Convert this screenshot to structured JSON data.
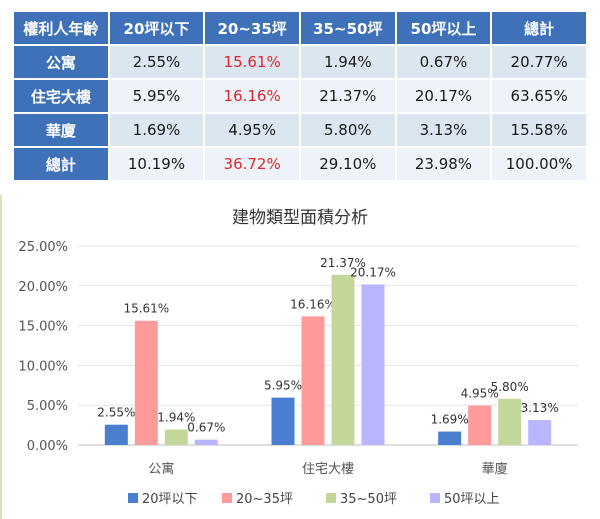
{
  "table": {
    "headers": [
      "權利人年齡",
      "20坪以下",
      "20~35坪",
      "35~50坪",
      "50坪以上",
      "總計"
    ],
    "rows": [
      {
        "label": "公寓",
        "cells": [
          "2.55%",
          "15.61%",
          "1.94%",
          "0.67%",
          "20.77%"
        ]
      },
      {
        "label": "住宅大樓",
        "cells": [
          "5.95%",
          "16.16%",
          "21.37%",
          "20.17%",
          "63.65%"
        ]
      },
      {
        "label": "華廈",
        "cells": [
          "1.69%",
          "4.95%",
          "5.80%",
          "3.13%",
          "15.58%"
        ]
      },
      {
        "label": "總計",
        "cells": [
          "10.19%",
          "36.72%",
          "29.10%",
          "23.98%",
          "100.00%"
        ]
      }
    ],
    "highlight_color": "#e0262b",
    "highlight_column": 1
  },
  "chart_data": {
    "type": "bar",
    "title": "建物類型面積分析",
    "categories": [
      "公寓",
      "住宅大樓",
      "華廈"
    ],
    "series": [
      {
        "name": "20坪以下",
        "color": "#4a7fcf",
        "values": [
          2.55,
          5.95,
          1.69
        ]
      },
      {
        "name": "20~35坪",
        "color": "#ff9a9a",
        "values": [
          15.61,
          16.16,
          4.95
        ]
      },
      {
        "name": "35~50坪",
        "color": "#c4d79b",
        "values": [
          1.94,
          21.37,
          5.8
        ]
      },
      {
        "name": "50坪以上",
        "color": "#b9b6ff",
        "values": [
          0.67,
          20.17,
          3.13
        ]
      }
    ],
    "ylim": [
      0,
      25
    ],
    "yticks": [
      "0.00%",
      "5.00%",
      "10.00%",
      "15.00%",
      "20.00%",
      "25.00%"
    ],
    "data_labels": [
      [
        "2.55%",
        "5.95%",
        "1.69%"
      ],
      [
        "15.61%",
        "16.16%",
        "4.95%"
      ],
      [
        "1.94%",
        "21.37%",
        "5.80%"
      ],
      [
        "0.67%",
        "20.17%",
        "3.13%"
      ]
    ],
    "grid": true,
    "legend": "bottom"
  }
}
